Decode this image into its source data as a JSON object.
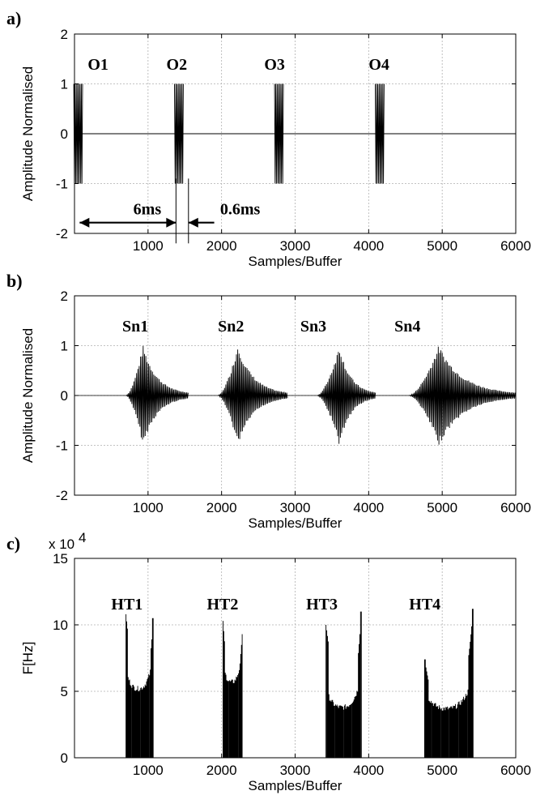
{
  "chart_data": [
    {
      "id": "a",
      "type": "line",
      "panel_label": "a)",
      "xlabel": "Samples/Buffer",
      "ylabel": "Amplitude Normalised",
      "xlim": [
        0,
        6000
      ],
      "ylim": [
        -2,
        2
      ],
      "xticks": [
        1000,
        2000,
        3000,
        4000,
        5000,
        6000
      ],
      "yticks": [
        -2,
        -1,
        0,
        1,
        2
      ],
      "grid": true,
      "series": [
        {
          "name": "O1",
          "burst_center": 50,
          "burst_width": 120,
          "amplitude": 1
        },
        {
          "name": "O2",
          "burst_center": 1420,
          "burst_width": 120,
          "amplitude": 1
        },
        {
          "name": "O3",
          "burst_center": 2780,
          "burst_width": 120,
          "amplitude": 1
        },
        {
          "name": "O4",
          "burst_center": 4150,
          "burst_width": 120,
          "amplitude": 1
        }
      ],
      "annotations": [
        {
          "text": "O1",
          "x": 180,
          "y": 1.4
        },
        {
          "text": "O2",
          "x": 1250,
          "y": 1.4
        },
        {
          "text": "O3",
          "x": 2580,
          "y": 1.4
        },
        {
          "text": "O4",
          "x": 4000,
          "y": 1.4
        },
        {
          "text": "6ms",
          "x": 800,
          "y": -1.5
        },
        {
          "text": "0.6ms",
          "x": 1980,
          "y": -1.5
        }
      ],
      "arrows": [
        {
          "from": 70,
          "to": 1380,
          "y": -1.8,
          "both": true
        },
        {
          "from": 1900,
          "to": 1550,
          "y": -1.8,
          "both": false
        }
      ],
      "markers": [
        1380,
        1550
      ]
    },
    {
      "id": "b",
      "type": "line",
      "panel_label": "b)",
      "xlabel": "Samples/Buffer",
      "ylabel": "Amplitude Normalised",
      "xlim": [
        0,
        6000
      ],
      "ylim": [
        -2,
        2
      ],
      "xticks": [
        1000,
        2000,
        3000,
        4000,
        5000,
        6000
      ],
      "yticks": [
        -2,
        -1,
        0,
        1,
        2
      ],
      "grid": true,
      "series": [
        {
          "name": "Sn1",
          "onset": 700,
          "peak": 930,
          "decay_end": 1550,
          "amplitude": 1
        },
        {
          "name": "Sn2",
          "onset": 1950,
          "peak": 2220,
          "decay_end": 2900,
          "amplitude": 1
        },
        {
          "name": "Sn3",
          "onset": 3300,
          "peak": 3600,
          "decay_end": 4100,
          "amplitude": 1
        },
        {
          "name": "Sn4",
          "onset": 4550,
          "peak": 4950,
          "decay_end": 6000,
          "amplitude": 1
        }
      ],
      "annotations": [
        {
          "text": "Sn1",
          "x": 650,
          "y": 1.4
        },
        {
          "text": "Sn2",
          "x": 1950,
          "y": 1.4
        },
        {
          "text": "Sn3",
          "x": 3070,
          "y": 1.4
        },
        {
          "text": "Sn4",
          "x": 4350,
          "y": 1.4
        }
      ]
    },
    {
      "id": "c",
      "type": "line",
      "panel_label": "c)",
      "xlabel": "Samples/Buffer",
      "ylabel": "F[Hz]",
      "y_multiplier": "x 10",
      "y_multiplier_exp": "4",
      "xlim": [
        0,
        6000
      ],
      "ylim": [
        0,
        15
      ],
      "xticks": [
        1000,
        2000,
        3000,
        4000,
        5000,
        6000
      ],
      "yticks": [
        0,
        5,
        10,
        15
      ],
      "grid": true,
      "series": [
        {
          "name": "HT1",
          "start": 700,
          "end": 1070,
          "base": 5.0,
          "peak_left": 10.8,
          "peak_right": 10.5
        },
        {
          "name": "HT2",
          "start": 2020,
          "end": 2280,
          "base": 5.5,
          "peak_left": 10.3,
          "peak_right": 9.3
        },
        {
          "name": "HT3",
          "start": 3420,
          "end": 3900,
          "base": 3.6,
          "peak_left": 10.0,
          "peak_right": 11.0
        },
        {
          "name": "HT4",
          "start": 4760,
          "end": 5420,
          "base": 3.5,
          "peak_left": 7.4,
          "peak_right": 11.2
        }
      ],
      "annotations": [
        {
          "text": "HT1",
          "x": 500,
          "y": 11.6
        },
        {
          "text": "HT2",
          "x": 1800,
          "y": 11.6
        },
        {
          "text": "HT3",
          "x": 3150,
          "y": 11.6
        },
        {
          "text": "HT4",
          "x": 4550,
          "y": 11.6
        }
      ]
    }
  ]
}
